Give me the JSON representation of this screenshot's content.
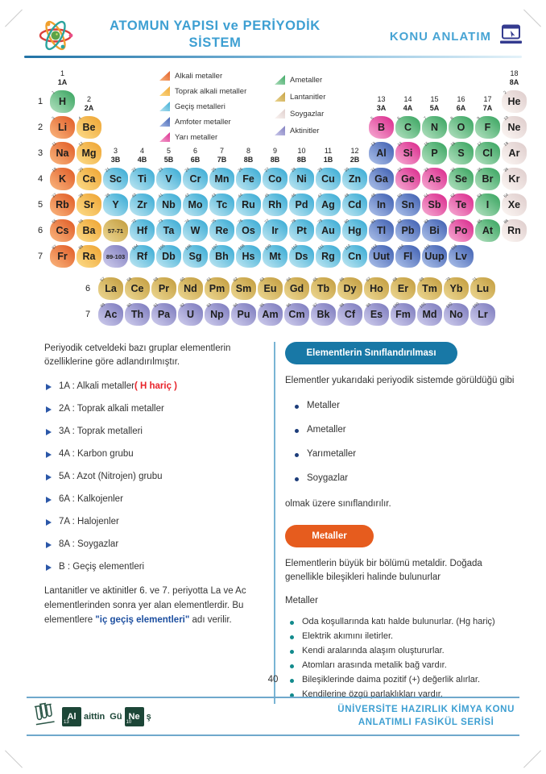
{
  "header": {
    "title_line1": "ATOMUN YAPISI ve PERİYODİK",
    "title_line2": "SİSTEM",
    "right_label": "KONU ANLATIM"
  },
  "legend": {
    "left": [
      {
        "label": "Alkali metaller",
        "cat": "alkali"
      },
      {
        "label": "Toprak alkali metaller",
        "cat": "toprak"
      },
      {
        "label": "Geçiş metalleri",
        "cat": "gecis"
      },
      {
        "label": "Amfoter metaller",
        "cat": "amfoter"
      },
      {
        "label": "Yarı metaller",
        "cat": "yari"
      }
    ],
    "right": [
      {
        "label": "Ametaller",
        "cat": "ametal"
      },
      {
        "label": "Lantanitler",
        "cat": "lantanit"
      },
      {
        "label": "Soygazlar",
        "cat": "soygaz"
      },
      {
        "label": "Aktinitler",
        "cat": "aktinit"
      }
    ]
  },
  "periodic_table": {
    "colors": {
      "alkali": [
        "#e2612b",
        "#f8b078"
      ],
      "toprak": [
        "#efa838",
        "#fbd883"
      ],
      "gecis": [
        "#3faed6",
        "#b7e3f0"
      ],
      "amfoter": [
        "#4565b5",
        "#a6bbe6"
      ],
      "yari": [
        "#dc3191",
        "#f4a3ce"
      ],
      "ametal": [
        "#3fa865",
        "#abddba"
      ],
      "soygaz": [
        "#e0cfce",
        "#faf4f1"
      ],
      "lantanit": [
        "#c6a144",
        "#ead48e"
      ],
      "aktinit": [
        "#817fc0",
        "#cac8ea"
      ]
    },
    "period_labels": [
      "1",
      "2",
      "3",
      "4",
      "5",
      "6",
      "7"
    ],
    "group_labels": [
      {
        "col": 1,
        "num": "1",
        "name": "1A",
        "hrow": 1
      },
      {
        "col": 2,
        "num": "2",
        "name": "2A",
        "hrow": 2
      },
      {
        "col": 3,
        "num": "3",
        "name": "3B",
        "hrow": 4
      },
      {
        "col": 4,
        "num": "4",
        "name": "4B",
        "hrow": 4
      },
      {
        "col": 5,
        "num": "5",
        "name": "5B",
        "hrow": 4
      },
      {
        "col": 6,
        "num": "6",
        "name": "6B",
        "hrow": 4
      },
      {
        "col": 7,
        "num": "7",
        "name": "7B",
        "hrow": 4
      },
      {
        "col": 8,
        "num": "8",
        "name": "8B",
        "hrow": 4
      },
      {
        "col": 9,
        "num": "9",
        "name": "8B",
        "hrow": 4
      },
      {
        "col": 10,
        "num": "10",
        "name": "8B",
        "hrow": 4
      },
      {
        "col": 11,
        "num": "11",
        "name": "1B",
        "hrow": 4
      },
      {
        "col": 12,
        "num": "12",
        "name": "2B",
        "hrow": 4
      },
      {
        "col": 13,
        "num": "13",
        "name": "3A",
        "hrow": 2
      },
      {
        "col": 14,
        "num": "14",
        "name": "4A",
        "hrow": 2
      },
      {
        "col": 15,
        "num": "15",
        "name": "5A",
        "hrow": 2
      },
      {
        "col": 16,
        "num": "16",
        "name": "6A",
        "hrow": 2
      },
      {
        "col": 17,
        "num": "17",
        "name": "7A",
        "hrow": 2
      },
      {
        "col": 18,
        "num": "18",
        "name": "8A",
        "hrow": 1
      }
    ],
    "element_fields": [
      "symbol",
      "atomic_number",
      "category",
      "period",
      "column"
    ],
    "elements": [
      [
        "H",
        "1",
        "ametal",
        1,
        1
      ],
      [
        "He",
        "2",
        "soygaz",
        1,
        18
      ],
      [
        "Li",
        "3",
        "alkali",
        2,
        1
      ],
      [
        "Be",
        "4",
        "toprak",
        2,
        2
      ],
      [
        "B",
        "5",
        "yari",
        2,
        13
      ],
      [
        "C",
        "6",
        "ametal",
        2,
        14
      ],
      [
        "N",
        "7",
        "ametal",
        2,
        15
      ],
      [
        "O",
        "8",
        "ametal",
        2,
        16
      ],
      [
        "F",
        "9",
        "ametal",
        2,
        17
      ],
      [
        "Ne",
        "10",
        "soygaz",
        2,
        18
      ],
      [
        "Na",
        "11",
        "alkali",
        3,
        1
      ],
      [
        "Mg",
        "12",
        "toprak",
        3,
        2
      ],
      [
        "Al",
        "13",
        "amfoter",
        3,
        13
      ],
      [
        "Si",
        "14",
        "yari",
        3,
        14
      ],
      [
        "P",
        "15",
        "ametal",
        3,
        15
      ],
      [
        "S",
        "16",
        "ametal",
        3,
        16
      ],
      [
        "Cl",
        "17",
        "ametal",
        3,
        17
      ],
      [
        "Ar",
        "18",
        "soygaz",
        3,
        18
      ],
      [
        "K",
        "19",
        "alkali",
        4,
        1
      ],
      [
        "Ca",
        "20",
        "toprak",
        4,
        2
      ],
      [
        "Sc",
        "21",
        "gecis",
        4,
        3
      ],
      [
        "Ti",
        "22",
        "gecis",
        4,
        4
      ],
      [
        "V",
        "23",
        "gecis",
        4,
        5
      ],
      [
        "Cr",
        "24",
        "gecis",
        4,
        6
      ],
      [
        "Mn",
        "25",
        "gecis",
        4,
        7
      ],
      [
        "Fe",
        "26",
        "gecis",
        4,
        8
      ],
      [
        "Co",
        "27",
        "gecis",
        4,
        9
      ],
      [
        "Ni",
        "28",
        "gecis",
        4,
        10
      ],
      [
        "Cu",
        "29",
        "gecis",
        4,
        11
      ],
      [
        "Zn",
        "30",
        "gecis",
        4,
        12
      ],
      [
        "Ga",
        "31",
        "amfoter",
        4,
        13
      ],
      [
        "Ge",
        "32",
        "yari",
        4,
        14
      ],
      [
        "As",
        "33",
        "yari",
        4,
        15
      ],
      [
        "Se",
        "34",
        "ametal",
        4,
        16
      ],
      [
        "Br",
        "35",
        "ametal",
        4,
        17
      ],
      [
        "Kr",
        "36",
        "soygaz",
        4,
        18
      ],
      [
        "Rb",
        "37",
        "alkali",
        5,
        1
      ],
      [
        "Sr",
        "38",
        "toprak",
        5,
        2
      ],
      [
        "Y",
        "39",
        "gecis",
        5,
        3
      ],
      [
        "Zr",
        "40",
        "gecis",
        5,
        4
      ],
      [
        "Nb",
        "41",
        "gecis",
        5,
        5
      ],
      [
        "Mo",
        "42",
        "gecis",
        5,
        6
      ],
      [
        "Tc",
        "43",
        "gecis",
        5,
        7
      ],
      [
        "Ru",
        "44",
        "gecis",
        5,
        8
      ],
      [
        "Rh",
        "45",
        "gecis",
        5,
        9
      ],
      [
        "Pd",
        "46",
        "gecis",
        5,
        10
      ],
      [
        "Ag",
        "47",
        "gecis",
        5,
        11
      ],
      [
        "Cd",
        "48",
        "gecis",
        5,
        12
      ],
      [
        "In",
        "49",
        "amfoter",
        5,
        13
      ],
      [
        "Sn",
        "50",
        "amfoter",
        5,
        14
      ],
      [
        "Sb",
        "51",
        "yari",
        5,
        15
      ],
      [
        "Te",
        "52",
        "yari",
        5,
        16
      ],
      [
        "I",
        "53",
        "ametal",
        5,
        17
      ],
      [
        "Xe",
        "54",
        "soygaz",
        5,
        18
      ],
      [
        "Cs",
        "55",
        "alkali",
        6,
        1
      ],
      [
        "Ba",
        "56",
        "toprak",
        6,
        2
      ],
      [
        "57-71",
        "",
        "lantanit",
        6,
        3
      ],
      [
        "Hf",
        "72",
        "gecis",
        6,
        4
      ],
      [
        "Ta",
        "73",
        "gecis",
        6,
        5
      ],
      [
        "W",
        "74",
        "gecis",
        6,
        6
      ],
      [
        "Re",
        "75",
        "gecis",
        6,
        7
      ],
      [
        "Os",
        "76",
        "gecis",
        6,
        8
      ],
      [
        "Ir",
        "77",
        "gecis",
        6,
        9
      ],
      [
        "Pt",
        "78",
        "gecis",
        6,
        10
      ],
      [
        "Au",
        "79",
        "gecis",
        6,
        11
      ],
      [
        "Hg",
        "80",
        "gecis",
        6,
        12
      ],
      [
        "Tl",
        "81",
        "amfoter",
        6,
        13
      ],
      [
        "Pb",
        "82",
        "amfoter",
        6,
        14
      ],
      [
        "Bi",
        "83",
        "amfoter",
        6,
        15
      ],
      [
        "Po",
        "84",
        "yari",
        6,
        16
      ],
      [
        "At",
        "85",
        "ametal",
        6,
        17
      ],
      [
        "Rn",
        "86",
        "soygaz",
        6,
        18
      ],
      [
        "Fr",
        "87",
        "alkali",
        7,
        1
      ],
      [
        "Ra",
        "88",
        "toprak",
        7,
        2
      ],
      [
        "89-103",
        "",
        "aktinit",
        7,
        3
      ],
      [
        "Rf",
        "104",
        "gecis",
        7,
        4
      ],
      [
        "Db",
        "105",
        "gecis",
        7,
        5
      ],
      [
        "Sg",
        "106",
        "gecis",
        7,
        6
      ],
      [
        "Bh",
        "107",
        "gecis",
        7,
        7
      ],
      [
        "Hs",
        "108",
        "gecis",
        7,
        8
      ],
      [
        "Mt",
        "109",
        "gecis",
        7,
        9
      ],
      [
        "Ds",
        "110",
        "gecis",
        7,
        10
      ],
      [
        "Rg",
        "111",
        "gecis",
        7,
        11
      ],
      [
        "Cn",
        "112",
        "gecis",
        7,
        12
      ],
      [
        "Uut",
        "113",
        "amfoter",
        7,
        13
      ],
      [
        "Fl",
        "114",
        "amfoter",
        7,
        14
      ],
      [
        "Uup",
        "115",
        "amfoter",
        7,
        15
      ],
      [
        "Lv",
        "116",
        "amfoter",
        7,
        16
      ]
    ],
    "lanthanide_row_label": "6",
    "actinide_row_label": "7",
    "lanthanides": [
      [
        "La",
        "57",
        "lantanit"
      ],
      [
        "Ce",
        "58",
        "lantanit"
      ],
      [
        "Pr",
        "59",
        "lantanit"
      ],
      [
        "Nd",
        "60",
        "lantanit"
      ],
      [
        "Pm",
        "61",
        "lantanit"
      ],
      [
        "Sm",
        "62",
        "lantanit"
      ],
      [
        "Eu",
        "63",
        "lantanit"
      ],
      [
        "Gd",
        "64",
        "lantanit"
      ],
      [
        "Tb",
        "65",
        "lantanit"
      ],
      [
        "Dy",
        "66",
        "lantanit"
      ],
      [
        "Ho",
        "67",
        "lantanit"
      ],
      [
        "Er",
        "68",
        "lantanit"
      ],
      [
        "Tm",
        "69",
        "lantanit"
      ],
      [
        "Yb",
        "70",
        "lantanit"
      ],
      [
        "Lu",
        "71",
        "lantanit"
      ]
    ],
    "actinides": [
      [
        "Ac",
        "89",
        "aktinit"
      ],
      [
        "Th",
        "90",
        "aktinit"
      ],
      [
        "Pa",
        "91",
        "aktinit"
      ],
      [
        "U",
        "92",
        "aktinit"
      ],
      [
        "Np",
        "93",
        "aktinit"
      ],
      [
        "Pu",
        "94",
        "aktinit"
      ],
      [
        "Am",
        "95",
        "aktinit"
      ],
      [
        "Cm",
        "96",
        "aktinit"
      ],
      [
        "Bk",
        "97",
        "aktinit"
      ],
      [
        "Cf",
        "98",
        "aktinit"
      ],
      [
        "Es",
        "99",
        "aktinit"
      ],
      [
        "Fm",
        "100",
        "aktinit"
      ],
      [
        "Md",
        "101",
        "aktinit"
      ],
      [
        "No",
        "102",
        "aktinit"
      ],
      [
        "Lr",
        "103",
        "aktinit"
      ]
    ]
  },
  "left_column": {
    "intro": "Periyodik cetveldeki bazı gruplar elementlerin özelliklerine göre adlandırılmıştır.",
    "items": [
      {
        "text": "1A : Alkali metaller ",
        "red": "( H hariç )"
      },
      {
        "text": "2A : Toprak alkali metaller"
      },
      {
        "text": "3A : Toprak metalleri"
      },
      {
        "text": "4A : Karbon grubu"
      },
      {
        "text": "5A : Azot (Nitrojen) grubu"
      },
      {
        "text": "6A : Kalkojenler"
      },
      {
        "text": "7A : Halojenler"
      },
      {
        "text": "8A : Soygazlar"
      },
      {
        "text": "B : Geçiş elementleri"
      }
    ],
    "note_pre": "Lantanitler ve aktinitler 6. ve 7. periyotta La ve Ac elementlerinden sonra yer alan elementlerdir. Bu elementlere ",
    "note_bold": "\"iç geçiş elementleri\"",
    "note_post": " adı verilir."
  },
  "right_column": {
    "badge_classification": "Elementlerin Sınıflandırılması",
    "p1": "Elementler yukarıdaki periyodik sistemde görüldüğü gibi",
    "classification_items": [
      "Metaller",
      "Ametaller",
      "Yarımetaller",
      "Soygazlar"
    ],
    "p2": "olmak üzere sınıflandırılır.",
    "badge_metals": "Metaller",
    "p3": "Elementlerin büyük bir bölümü metaldir. Doğada genellikle bileşikleri halinde bulunurlar",
    "p4": "Metaller",
    "metal_properties": [
      "Oda koşullarında katı halde bulunurlar. (Hg hariç)",
      "Elektrik akımını iletirler.",
      "Kendi aralarında alaşım oluştururlar.",
      "Atomları arasında metalik bağ vardır.",
      "Bileşiklerinde daima pozitif (+) değerlik alırlar.",
      "Kendilerine özgü parlaklıkları vardır."
    ]
  },
  "footer": {
    "page_number": "40",
    "logo": {
      "tile1_num": "13",
      "tile1_sym": "Al",
      "mid1": "aittin",
      "mid2": "Gü",
      "tile2_num": "10",
      "tile2_sym": "Ne",
      "tail": "ş"
    },
    "series_line1": "ÜNİVERSİTE HAZIRLIK KİMYA KONU",
    "series_line2": "ANLATIMLI FASİKÜL SERİSİ"
  },
  "ui_colors": {
    "header_blue": "#3d9fd2",
    "badge_blue": "#1878a6",
    "badge_orange": "#e65c1e",
    "highlight_red": "#e8232a",
    "bold_blue": "#1d4fa0",
    "footer_green": "#1c4637",
    "line_blue": "#6fa8cc"
  }
}
